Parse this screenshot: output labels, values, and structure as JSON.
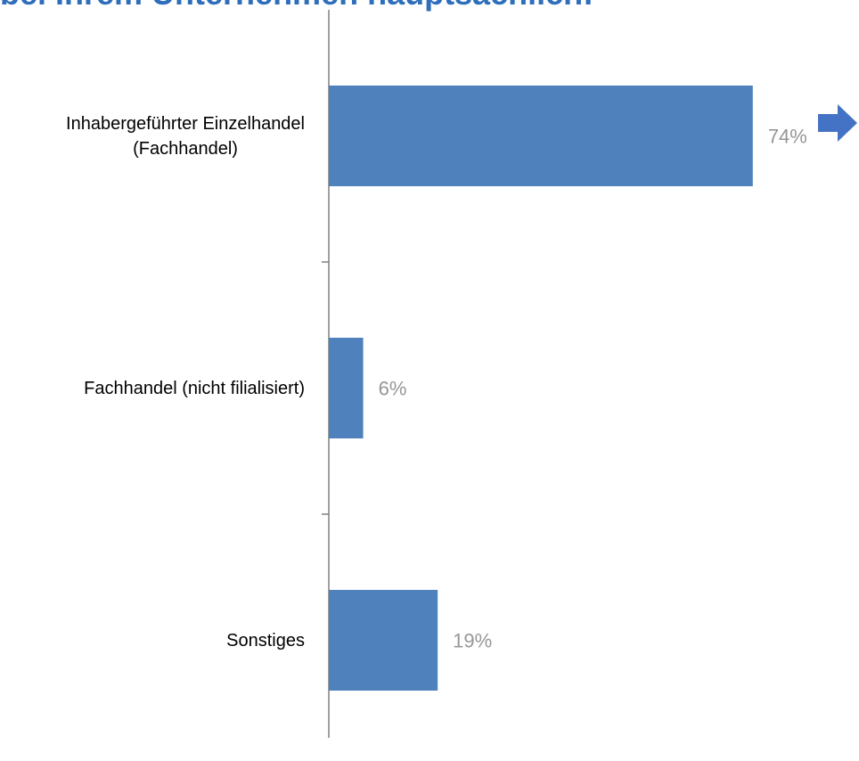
{
  "chart_data": {
    "type": "hbar",
    "title": "bei Ihrem Unternehmen hauptsächlich:",
    "categories": [
      "Inhabergeführter Einzelhandel\n(Fachhandel)",
      "Fachhandel (nicht filialisiert)",
      "Sonstiges"
    ],
    "values": [
      74,
      6,
      19
    ],
    "value_labels": [
      "74%",
      "6%",
      "19%"
    ],
    "color": "#4f81bd"
  }
}
